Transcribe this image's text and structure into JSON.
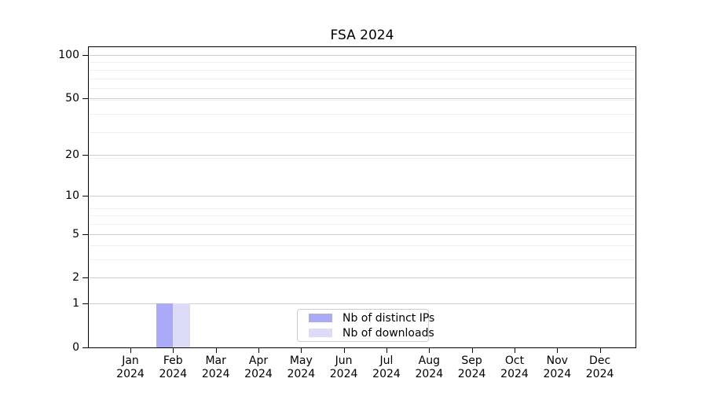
{
  "chart_data": {
    "type": "bar",
    "title": "FSA 2024",
    "categories": [
      {
        "month": "Jan",
        "year": "2024"
      },
      {
        "month": "Feb",
        "year": "2024"
      },
      {
        "month": "Mar",
        "year": "2024"
      },
      {
        "month": "Apr",
        "year": "2024"
      },
      {
        "month": "May",
        "year": "2024"
      },
      {
        "month": "Jun",
        "year": "2024"
      },
      {
        "month": "Jul",
        "year": "2024"
      },
      {
        "month": "Aug",
        "year": "2024"
      },
      {
        "month": "Sep",
        "year": "2024"
      },
      {
        "month": "Oct",
        "year": "2024"
      },
      {
        "month": "Nov",
        "year": "2024"
      },
      {
        "month": "Dec",
        "year": "2024"
      }
    ],
    "series": [
      {
        "name": "Nb of distinct IPs",
        "color": "#aaaaf8",
        "values": [
          0,
          1,
          0,
          0,
          0,
          0,
          0,
          0,
          0,
          0,
          0,
          0
        ]
      },
      {
        "name": "Nb of downloads",
        "color": "#dcdcf8",
        "values": [
          0,
          1,
          0,
          0,
          0,
          0,
          0,
          0,
          0,
          0,
          0,
          0
        ]
      }
    ],
    "yscale": "log10(1+y)",
    "yticks": [
      0,
      1,
      2,
      5,
      10,
      20,
      50,
      100
    ],
    "ylim": [
      0,
      113
    ],
    "grid": {
      "major": true,
      "minor": true
    },
    "legend": {
      "position": "lower center"
    },
    "colors": {
      "spine": "#000000",
      "grid_major": "#cccccc",
      "grid_minor": "#efefef",
      "text": "#000000",
      "background": "#ffffff"
    }
  }
}
